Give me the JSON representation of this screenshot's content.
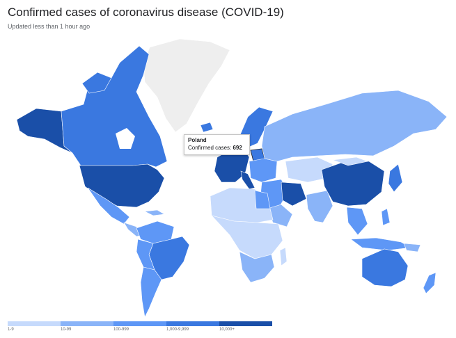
{
  "header": {
    "title": "Confirmed cases of coronavirus disease (COVID-19)",
    "subtitle": "Updated less than 1 hour ago"
  },
  "tooltip": {
    "country": "Poland",
    "label": "Confirmed cases:",
    "value": "692"
  },
  "legend": {
    "items": [
      {
        "label": "1-9",
        "color": "#c6dafc"
      },
      {
        "label": "10-99",
        "color": "#8ab4f8"
      },
      {
        "label": "100-999",
        "color": "#5e97f6"
      },
      {
        "label": "1,000-9,999",
        "color": "#3a78e0"
      },
      {
        "label": "10,000+",
        "color": "#1a4fa8"
      }
    ]
  },
  "colors": {
    "no_data": "#eeeeee",
    "bin1": "#c6dafc",
    "bin2": "#8ab4f8",
    "bin3": "#5e97f6",
    "bin4": "#3a78e0",
    "bin5": "#1a4fa8"
  }
}
